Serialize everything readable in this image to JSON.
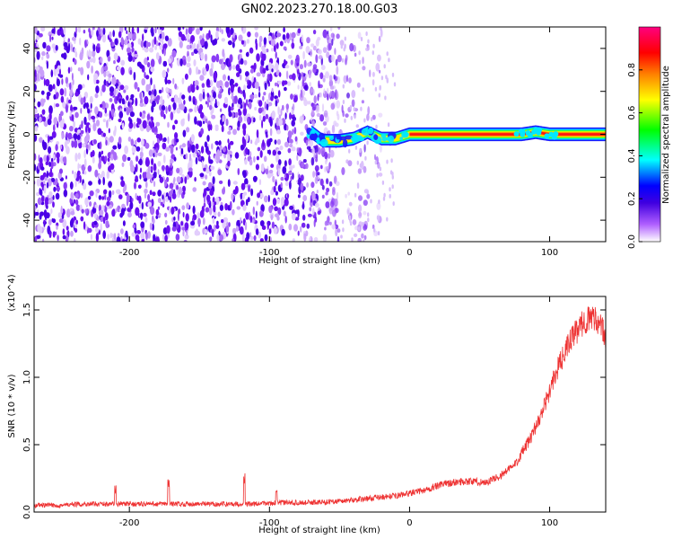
{
  "title": "GN02.2023.270.18.00.G03",
  "chart_data": [
    {
      "type": "heatmap",
      "name": "spectrogram",
      "xlabel": "Height of straight line (km)",
      "ylabel": "Frequency (Hz)",
      "xlim": [
        -268,
        140
      ],
      "ylim": [
        -50,
        50
      ],
      "xticks": [
        -200,
        -100,
        0,
        100
      ],
      "yticks": [
        -40,
        -20,
        0,
        20,
        40
      ],
      "xtick_labels": [
        "-200",
        "-100",
        "0",
        "100"
      ],
      "ytick_labels": [
        "-40",
        "-20",
        "0",
        "20",
        "40"
      ],
      "colorbar": {
        "label": "Normalized spectral amplitude",
        "range": [
          0,
          1
        ],
        "ticks": [
          0.0,
          0.2,
          0.4,
          0.6,
          0.8
        ],
        "tick_labels": [
          "0.0",
          "0.2",
          "0.4",
          "0.6",
          "0.8"
        ],
        "colormap": [
          "#ffffff",
          "#b060ff",
          "#4000e0",
          "#0000ff",
          "#00ffff",
          "#00ff00",
          "#ffff00",
          "#ff8000",
          "#ff0000",
          "#ff0080"
        ]
      },
      "noise_region_x": [
        -268,
        -50
      ],
      "signal_ridge": [
        [
          -70,
          1
        ],
        [
          -62,
          -3
        ],
        [
          -50,
          -3
        ],
        [
          -40,
          -2
        ],
        [
          -30,
          1
        ],
        [
          -20,
          -2
        ],
        [
          -10,
          -2
        ],
        [
          0,
          0
        ],
        [
          50,
          0
        ],
        [
          80,
          0
        ],
        [
          90,
          1
        ],
        [
          100,
          0
        ],
        [
          140,
          0
        ]
      ],
      "signal_band_hz": 2,
      "grid": false
    },
    {
      "type": "line",
      "name": "snr",
      "xlabel": "Height of straight line (km)",
      "ylabel": "SNR (10 * v/v)",
      "multiplier": "(x10^4)",
      "xlim": [
        -268,
        140
      ],
      "ylim": [
        0,
        1.6
      ],
      "xticks": [
        -200,
        -100,
        0,
        100
      ],
      "yticks": [
        0.0,
        0.5,
        1.0,
        1.5
      ],
      "xtick_labels": [
        "-200",
        "-100",
        "0",
        "100"
      ],
      "ytick_labels": [
        "0.0",
        "0.5",
        "1.0",
        "1.5"
      ],
      "line_color": "#ee3333",
      "x": [
        -268,
        -250,
        -230,
        -210,
        -190,
        -170,
        -150,
        -130,
        -110,
        -90,
        -70,
        -50,
        -30,
        -10,
        10,
        25,
        40,
        55,
        65,
        75,
        85,
        95,
        105,
        115,
        125,
        132,
        138,
        140
      ],
      "y": [
        0.05,
        0.05,
        0.06,
        0.06,
        0.06,
        0.06,
        0.06,
        0.06,
        0.06,
        0.07,
        0.07,
        0.08,
        0.1,
        0.12,
        0.16,
        0.21,
        0.23,
        0.22,
        0.27,
        0.35,
        0.52,
        0.75,
        1.05,
        1.28,
        1.42,
        1.45,
        1.35,
        1.25
      ],
      "spikes": [
        [
          -210,
          0.2
        ],
        [
          -172,
          0.25
        ],
        [
          -118,
          0.3
        ],
        [
          -95,
          0.2
        ]
      ],
      "grid": false
    }
  ]
}
